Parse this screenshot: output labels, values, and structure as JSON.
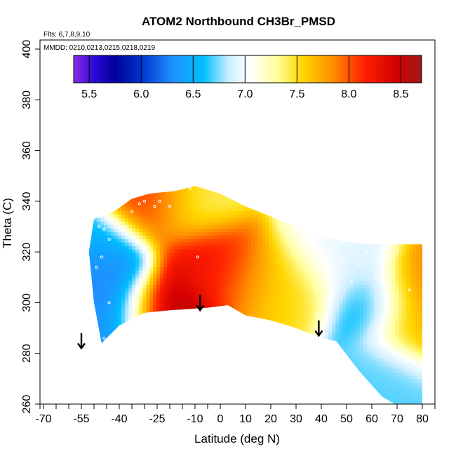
{
  "chart_data": {
    "type": "heatmap",
    "title": "ATOM2 Northbound CH3Br_PMSD",
    "annotations": {
      "flights": "Flts: 6,7,8,9,10",
      "dates": "MMDD: 0210,0213,0215,0218,0219"
    },
    "xlabel": "Latitude (deg N)",
    "ylabel": "Theta (C)",
    "xlim": [
      -70,
      80
    ],
    "ylim": [
      260,
      400
    ],
    "x_ticks": [
      -70,
      -55,
      -40,
      -25,
      -10,
      0,
      10,
      20,
      30,
      40,
      50,
      60,
      70,
      80
    ],
    "x_tick_labels": [
      "-70",
      "-55",
      "-40",
      "-25",
      "-10",
      "0",
      "10",
      "20",
      "30",
      "40",
      "50",
      "60",
      "70",
      "80"
    ],
    "x_minor_ticks": [
      -65,
      -60,
      -50,
      -45,
      -35,
      -30,
      -20,
      -15,
      -5
    ],
    "y_ticks": [
      260,
      280,
      300,
      320,
      340,
      360,
      380,
      400
    ],
    "y_tick_labels": [
      "260",
      "280",
      "300",
      "320",
      "340",
      "360",
      "380",
      "400"
    ],
    "colorbar": {
      "range": [
        5.35,
        8.7
      ],
      "ticks": [
        5.5,
        6.0,
        6.5,
        7.0,
        7.5,
        8.0,
        8.5
      ],
      "tick_labels": [
        "5.5",
        "6.0",
        "6.5",
        "7.0",
        "7.5",
        "8.0",
        "8.5"
      ],
      "stops": [
        {
          "value": 5.35,
          "color": "#8a2be2"
        },
        {
          "value": 5.55,
          "color": "#2a0ad6"
        },
        {
          "value": 5.75,
          "color": "#00009c"
        },
        {
          "value": 6.0,
          "color": "#0033cc"
        },
        {
          "value": 6.3,
          "color": "#1e90ff"
        },
        {
          "value": 6.6,
          "color": "#00bfff"
        },
        {
          "value": 6.85,
          "color": "#cfefff"
        },
        {
          "value": 7.05,
          "color": "#ffffff"
        },
        {
          "value": 7.3,
          "color": "#ffffa0"
        },
        {
          "value": 7.55,
          "color": "#ffd700"
        },
        {
          "value": 7.85,
          "color": "#ff8c00"
        },
        {
          "value": 8.15,
          "color": "#ff2000"
        },
        {
          "value": 8.45,
          "color": "#d40000"
        },
        {
          "value": 8.7,
          "color": "#a01818"
        }
      ]
    },
    "field": {
      "bottom_boundary": [
        [
          -47,
          284
        ],
        [
          -44,
          287
        ],
        [
          -40,
          291
        ],
        [
          -30,
          296
        ],
        [
          -20,
          297
        ],
        [
          -5,
          298
        ],
        [
          3,
          299
        ],
        [
          10,
          295
        ],
        [
          20,
          293
        ],
        [
          30,
          290
        ],
        [
          40,
          286
        ],
        [
          50,
          284
        ],
        [
          60,
          283
        ],
        [
          70,
          282
        ],
        [
          80,
          281
        ]
      ],
      "top_boundary": [
        [
          -50,
          333
        ],
        [
          -42,
          336
        ],
        [
          -35,
          341
        ],
        [
          -28,
          343
        ],
        [
          -18,
          344
        ],
        [
          -10,
          346
        ],
        [
          0,
          343
        ],
        [
          10,
          338
        ],
        [
          20,
          334
        ],
        [
          30,
          330
        ],
        [
          40,
          326
        ],
        [
          50,
          324
        ],
        [
          60,
          323
        ],
        [
          70,
          323
        ],
        [
          80,
          323
        ]
      ],
      "west_edge": [
        [
          -50,
          333
        ],
        [
          -52,
          320
        ],
        [
          -50,
          300
        ],
        [
          -47,
          284
        ]
      ],
      "east_lower_edge": [
        [
          45,
          286
        ],
        [
          55,
          273
        ],
        [
          64,
          263
        ],
        [
          69,
          260
        ],
        [
          80,
          260
        ],
        [
          80,
          281
        ]
      ],
      "hotspots": [
        {
          "x": -5,
          "y": 316,
          "value": 8.35
        },
        {
          "x": 5,
          "y": 312,
          "value": 8.0
        },
        {
          "x": 20,
          "y": 310,
          "value": 7.65
        },
        {
          "x": 30,
          "y": 306,
          "value": 7.5
        },
        {
          "x": -22,
          "y": 298,
          "value": 8.6
        },
        {
          "x": -28,
          "y": 338,
          "value": 8.1
        },
        {
          "x": -10,
          "y": 337,
          "value": 7.4
        },
        {
          "x": 78,
          "y": 305,
          "value": 7.9
        },
        {
          "x": 78,
          "y": 290,
          "value": 7.7
        },
        {
          "x": -45,
          "y": 310,
          "value": 6.2
        },
        {
          "x": -43,
          "y": 296,
          "value": 6.3
        },
        {
          "x": -48,
          "y": 322,
          "value": 6.5
        },
        {
          "x": 60,
          "y": 300,
          "value": 6.5
        },
        {
          "x": 50,
          "y": 315,
          "value": 6.9
        },
        {
          "x": 66,
          "y": 272,
          "value": 6.7
        },
        {
          "x": 40,
          "y": 320,
          "value": 7.0
        }
      ],
      "baseline_value": 6.95
    },
    "sample_points": [
      [
        -48,
        330
      ],
      [
        -46,
        329
      ],
      [
        -44,
        325
      ],
      [
        -47,
        318
      ],
      [
        -49,
        314
      ],
      [
        -44,
        300
      ],
      [
        -46,
        286
      ],
      [
        -38,
        330
      ],
      [
        -35,
        336
      ],
      [
        -32,
        339
      ],
      [
        -30,
        340
      ],
      [
        -26,
        338
      ],
      [
        -24,
        340
      ],
      [
        -20,
        338
      ],
      [
        -12,
        345
      ],
      [
        -9,
        318
      ],
      [
        25,
        333
      ],
      [
        28,
        327
      ],
      [
        45,
        322
      ],
      [
        48,
        318
      ],
      [
        55,
        315
      ],
      [
        58,
        320
      ],
      [
        60,
        322
      ],
      [
        62,
        310
      ],
      [
        65,
        322
      ],
      [
        52,
        308
      ],
      [
        45,
        305
      ],
      [
        38,
        295
      ],
      [
        70,
        320
      ],
      [
        75,
        305
      ]
    ],
    "arrows": [
      {
        "x": -55,
        "y_tip": 282,
        "y_tail": 288
      },
      {
        "x": -8,
        "y_tip": 297,
        "y_tail": 303
      },
      {
        "x": 39,
        "y_tip": 287,
        "y_tail": 293
      }
    ]
  }
}
